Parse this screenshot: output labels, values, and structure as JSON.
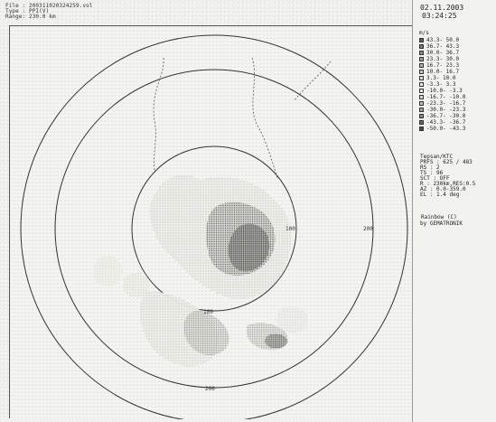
{
  "header": {
    "file": "File : 200311020324259.vol",
    "type": "Type : PPI(V)",
    "range": "Range: 230.0 km"
  },
  "sidepanel": {
    "date": "02.11.2003",
    "time": "03:24:25",
    "unit": "m/s",
    "legend": [
      {
        "label": "43.3- 50.0",
        "color": "#5f5f5f"
      },
      {
        "label": "36.7- 43.3",
        "color": "#787878"
      },
      {
        "label": "30.0- 36.7",
        "color": "#8b8b8b"
      },
      {
        "label": "23.3- 30.0",
        "color": "#9c9c9c"
      },
      {
        "label": "16.7- 23.3",
        "color": "#b2b2b2"
      },
      {
        "label": "10.0- 16.7",
        "color": "#c6c6c6"
      },
      {
        "label": "3.3- 10.0",
        "color": "#d9d9d9"
      },
      {
        "label": "-3.3- 3.3",
        "color": "#ededed"
      },
      {
        "label": "-10.0- -3.3",
        "color": "#e5e5e5"
      },
      {
        "label": "-16.7- -10.0",
        "color": "#d3d3d3"
      },
      {
        "label": "-23.3- -16.7",
        "color": "#bdbdbd"
      },
      {
        "label": "-30.0- -23.3",
        "color": "#a2a2a2"
      },
      {
        "label": "-36.7- -30.0",
        "color": "#888888"
      },
      {
        "label": "-43.3- -36.7",
        "color": "#666666"
      },
      {
        "label": "-50.0- -43.3",
        "color": "#4d4d4d"
      }
    ],
    "meta": [
      "Tepsan/KTC",
      "PRFS : 625 / 483",
      "RS  : 2",
      "TS  : 96",
      "SCT : OFF",
      "R   : 230km,RES:0.5",
      "AZ  : 0.0-359.0",
      "EL  : 1.4 deg"
    ],
    "credit_line1": " Rainbow (C)",
    "credit_line2": "by GEMATRONIK"
  },
  "radar": {
    "ring_labels": [
      "100",
      "200",
      "100",
      "200"
    ]
  }
}
